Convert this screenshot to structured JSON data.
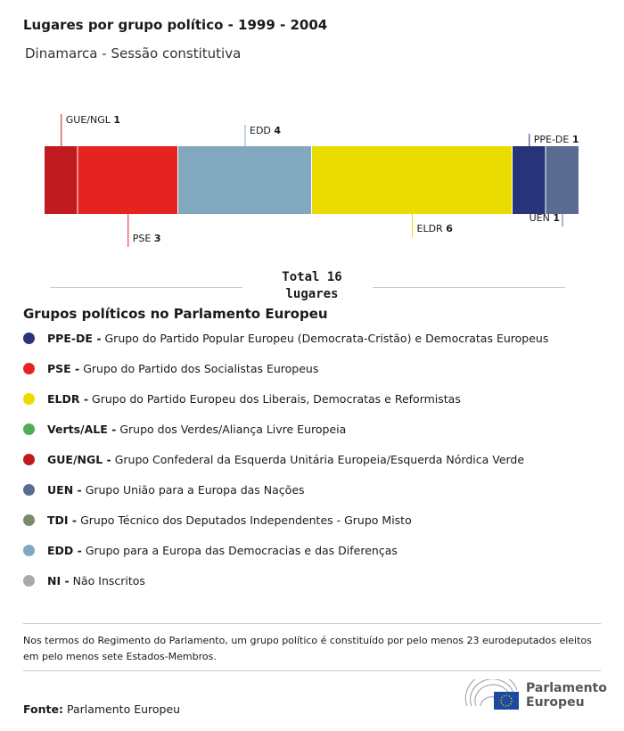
{
  "title": "Lugares por grupo político - 1999 - 2004",
  "subtitle": "Dinamarca - Sessão constitutiva",
  "chart_data": {
    "type": "stacked-bar",
    "orientation": "horizontal",
    "total": 16,
    "segments": [
      {
        "name": "GUE/NGL",
        "value": 1,
        "color": "#c01c1f",
        "label_pos": "above"
      },
      {
        "name": "PSE",
        "value": 3,
        "color": "#e52421",
        "label_pos": "below"
      },
      {
        "name": "EDD",
        "value": 4,
        "color": "#82a8bf",
        "label_pos": "above"
      },
      {
        "name": "ELDR",
        "value": 6,
        "color": "#ebdc00",
        "label_pos": "below"
      },
      {
        "name": "PPE-DE",
        "value": 1,
        "color": "#273479",
        "label_pos": "above"
      },
      {
        "name": "UEN",
        "value": 1,
        "color": "#5a6b92",
        "label_pos": "below"
      }
    ]
  },
  "total_label": {
    "line1": "Total 16",
    "line2": "lugares"
  },
  "legend": {
    "title": "Grupos políticos no Parlamento Europeu",
    "items": [
      {
        "abbr": "PPE-DE -",
        "desc": "Grupo do Partido Popular Europeu (Democrata-Cristão) e Democratas Europeus",
        "color": "#273479"
      },
      {
        "abbr": "PSE -",
        "desc": "Grupo do Partido dos Socialistas Europeus",
        "color": "#e52421"
      },
      {
        "abbr": "ELDR -",
        "desc": "Grupo do Partido Europeu dos Liberais, Democratas e Reformistas",
        "color": "#ebdc00"
      },
      {
        "abbr": "Verts/ALE -",
        "desc": "Grupo dos Verdes/Aliança Livre Europeia",
        "color": "#4caf50"
      },
      {
        "abbr": "GUE/NGL -",
        "desc": "Grupo Confederal da Esquerda Unitária Europeia/Esquerda Nórdica Verde",
        "color": "#c01c1f"
      },
      {
        "abbr": "UEN -",
        "desc": "Grupo União para a Europa das Nações",
        "color": "#5a6b92"
      },
      {
        "abbr": "TDI -",
        "desc": "Grupo Técnico dos Deputados Independentes - Grupo Misto",
        "color": "#7c8a6a"
      },
      {
        "abbr": "EDD -",
        "desc": "Grupo para a Europa das Democracias e das Diferenças",
        "color": "#82a8bf"
      },
      {
        "abbr": "NI -",
        "desc": "Não Inscritos",
        "color": "#aaaaaa"
      }
    ]
  },
  "note": "Nos termos do Regimento do Parlamento, um grupo político é constituído por pelo menos 23 eurodeputados eleitos em pelo menos sete Estados-Membros.",
  "source": {
    "label": "Fonte:",
    "value": "Parlamento Europeu"
  },
  "logo": {
    "line1": "Parlamento",
    "line2": "Europeu"
  }
}
